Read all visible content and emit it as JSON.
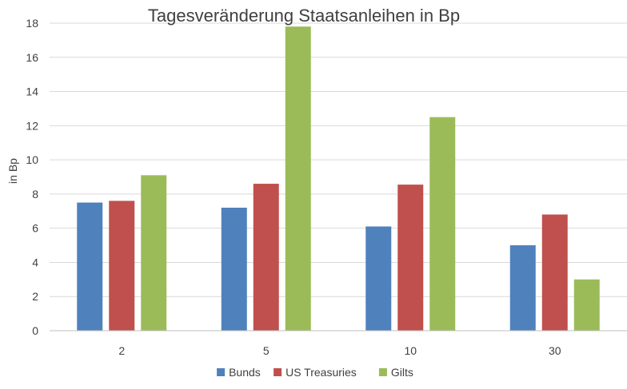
{
  "chart_data": {
    "type": "bar",
    "title": "Tagesveränderung Staatsanleihen in Bp",
    "xlabel": "",
    "ylabel": "in Bp",
    "ylim": [
      0,
      18
    ],
    "yticks": [
      "0",
      "2",
      "4",
      "6",
      "8",
      "10",
      "12",
      "14",
      "16",
      "18"
    ],
    "categories": [
      "2",
      "5",
      "10",
      "30"
    ],
    "series": [
      {
        "name": "Bunds",
        "color": "#4f81bd",
        "values": [
          7.5,
          7.2,
          6.1,
          5.0
        ]
      },
      {
        "name": "US Treasuries",
        "color": "#c0504d",
        "values": [
          7.6,
          8.6,
          8.55,
          6.8
        ]
      },
      {
        "name": "Gilts",
        "color": "#9bbb59",
        "values": [
          9.1,
          17.8,
          12.5,
          3.0
        ]
      }
    ],
    "grid": true,
    "legend_position": "bottom"
  }
}
